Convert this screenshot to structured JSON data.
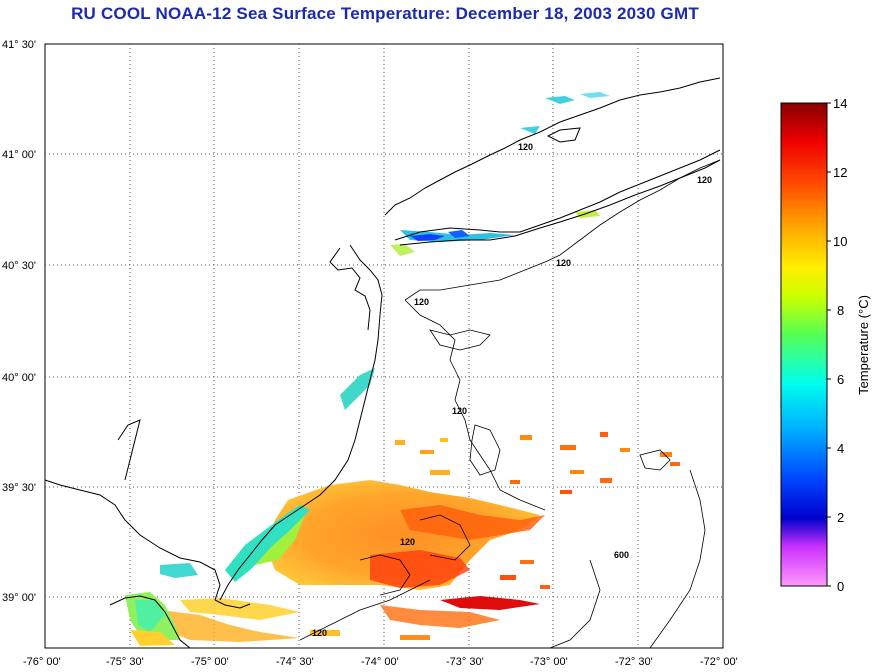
{
  "title": "RU COOL  NOAA-12  Sea Surface Temperature:  December 18, 2003 2030 GMT",
  "map": {
    "lat_labels": [
      "41° 30'",
      "41° 00'",
      "40° 30'",
      "40° 00'",
      "39° 30'",
      "39° 00'"
    ],
    "lon_labels": [
      "-76° 00'",
      "-75° 30'",
      "-75° 00'",
      "-74° 30'",
      "-74° 00'",
      "-73° 30'",
      "-73° 00'",
      "-72° 30'",
      "-72° 00'"
    ],
    "isobath_labels": [
      "120",
      "120",
      "120",
      "120",
      "120",
      "120",
      "120",
      "600"
    ]
  },
  "colorbar": {
    "label": "Temperature (°C)",
    "ticks": [
      "14",
      "12",
      "10",
      "8",
      "6",
      "4",
      "2",
      "0"
    ],
    "range": [
      0,
      14
    ],
    "colors": [
      "#ff66cc",
      "#9933ff",
      "#0000ff",
      "#00ffff",
      "#33ff66",
      "#ffff00",
      "#ff9900",
      "#ff0000",
      "#990000"
    ]
  },
  "legend_text": "Temperature (°C)"
}
